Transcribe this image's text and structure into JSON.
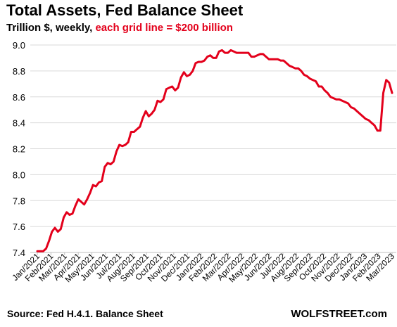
{
  "title": "Total Assets, Fed Balance Sheet",
  "subtitle_black": "Trillion $, weekly, ",
  "subtitle_red": "each grid line = $200 billion",
  "source": "Source: Fed H.4.1. Balance Sheet",
  "brand": "WOLFSTREET.com",
  "colors": {
    "line": "#e3001b",
    "grid": "#d9d9d9",
    "accent": "#e3001b"
  },
  "chart_data": {
    "type": "line",
    "title": "Total Assets, Fed Balance Sheet",
    "xlabel": "",
    "ylabel": "",
    "ylim": [
      7.4,
      9.0
    ],
    "yticks": [
      7.4,
      7.6,
      7.8,
      8.0,
      8.2,
      8.4,
      8.6,
      8.8,
      9.0
    ],
    "ytick_labels": [
      "7.4",
      "7.6",
      "7.8",
      "8.0",
      "8.2",
      "8.4",
      "8.6",
      "8.8",
      "9.0"
    ],
    "xtick_labels": [
      "Jan/2021",
      "Feb/2021",
      "Mar/2021",
      "Apr/2021",
      "May/2021",
      "Jun/2021",
      "Jul/2021",
      "Aug/2021",
      "Sep/2021",
      "Oct/2021",
      "Nov/2021",
      "Dec/2021",
      "Jan/2022",
      "Feb/2022",
      "Mar/2022",
      "Apr/2022",
      "May/2022",
      "Jun/2022",
      "Jul/2022",
      "Aug/2022",
      "Sep/2022",
      "Oct/2022",
      "Nov/2022",
      "Dec/2022",
      "Jan/2023",
      "Feb/2023",
      "Mar/2023"
    ],
    "grid": "horizontal",
    "legend": "none",
    "series": [
      {
        "values": [
          7.41,
          7.41,
          7.41,
          7.43,
          7.49,
          7.56,
          7.59,
          7.56,
          7.58,
          7.67,
          7.71,
          7.69,
          7.7,
          7.76,
          7.81,
          7.79,
          7.77,
          7.81,
          7.86,
          7.92,
          7.91,
          7.94,
          7.95,
          8.06,
          8.09,
          8.08,
          8.1,
          8.18,
          8.23,
          8.22,
          8.23,
          8.25,
          8.33,
          8.33,
          8.35,
          8.37,
          8.44,
          8.49,
          8.45,
          8.47,
          8.5,
          8.57,
          8.56,
          8.58,
          8.66,
          8.67,
          8.68,
          8.65,
          8.67,
          8.75,
          8.79,
          8.76,
          8.77,
          8.8,
          8.86,
          8.87,
          8.87,
          8.88,
          8.91,
          8.92,
          8.9,
          8.9,
          8.95,
          8.96,
          8.94,
          8.94,
          8.96,
          8.95,
          8.94,
          8.94,
          8.94,
          8.94,
          8.94,
          8.91,
          8.91,
          8.92,
          8.93,
          8.93,
          8.91,
          8.89,
          8.89,
          8.89,
          8.89,
          8.88,
          8.88,
          8.86,
          8.84,
          8.83,
          8.82,
          8.82,
          8.8,
          8.77,
          8.76,
          8.74,
          8.73,
          8.72,
          8.68,
          8.68,
          8.65,
          8.63,
          8.6,
          8.59,
          8.58,
          8.58,
          8.57,
          8.56,
          8.55,
          8.52,
          8.51,
          8.49,
          8.47,
          8.45,
          8.43,
          8.42,
          8.4,
          8.38,
          8.34,
          8.34,
          8.63,
          8.73,
          8.71,
          8.63
        ]
      }
    ]
  }
}
